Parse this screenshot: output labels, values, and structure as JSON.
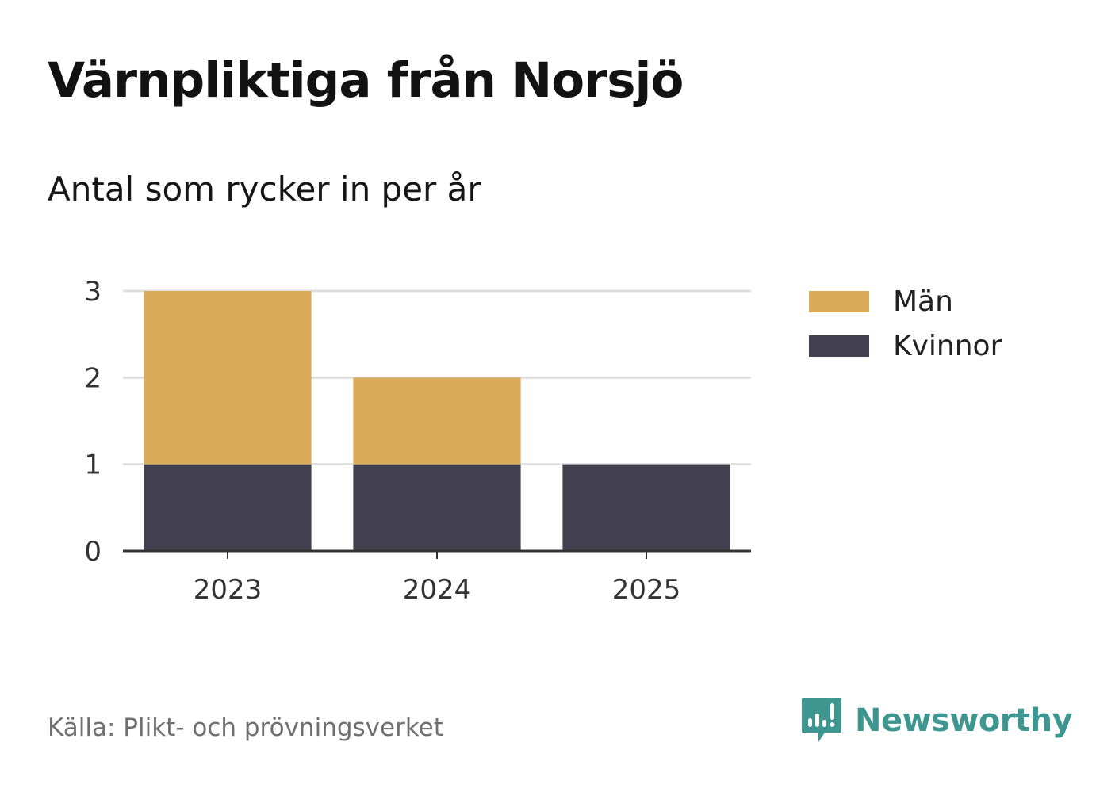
{
  "title": "Värnpliktiga från Norsjö",
  "subtitle": "Antal som rycker in per år",
  "source": "Källa: Plikt- och prövningsverket",
  "brand": {
    "name": "Newsworthy",
    "icon": "chart-speech-bubble-icon",
    "color": "#3d9690"
  },
  "legend": [
    {
      "label": "Män",
      "color": "#d9ab5a"
    },
    {
      "label": "Kvinnor",
      "color": "#42404e"
    }
  ],
  "chart_data": {
    "type": "bar",
    "stacked": true,
    "categories": [
      "2023",
      "2024",
      "2025"
    ],
    "series": [
      {
        "name": "Kvinnor",
        "values": [
          1,
          1,
          1
        ],
        "color": "#42404e"
      },
      {
        "name": "Män",
        "values": [
          2,
          1,
          0
        ],
        "color": "#d9ab5a"
      }
    ],
    "ylim": [
      0,
      3
    ],
    "yticks": [
      "0",
      "1",
      "2",
      "3"
    ],
    "grid": true,
    "legend_position": "right"
  }
}
